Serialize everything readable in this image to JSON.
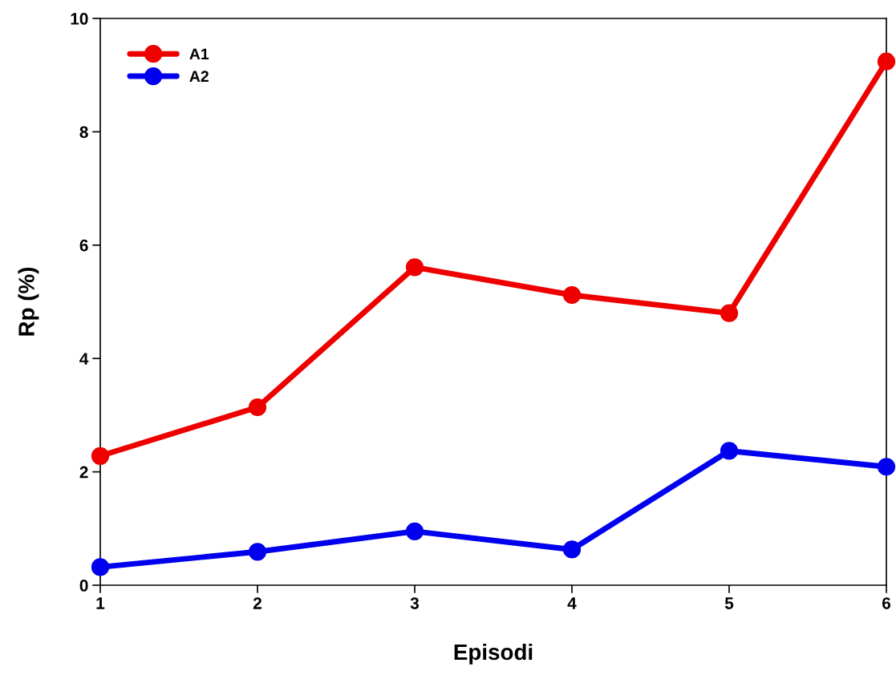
{
  "chart_data": {
    "type": "line",
    "xlabel": "Episodi",
    "ylabel": "Rp (%)",
    "x": [
      1,
      2,
      3,
      4,
      5,
      6
    ],
    "series": [
      {
        "name": "A1",
        "color": "#ee0000",
        "values": [
          2.28,
          3.14,
          5.61,
          5.12,
          4.8,
          9.24
        ]
      },
      {
        "name": "A2",
        "color": "#0000ee",
        "values": [
          0.32,
          0.59,
          0.95,
          0.63,
          2.37,
          2.09
        ]
      }
    ],
    "xlim": [
      1,
      6
    ],
    "xticks": [
      1,
      2,
      3,
      4,
      5,
      6
    ],
    "ylim": [
      0,
      10
    ],
    "yticks": [
      0,
      2,
      4,
      6,
      8,
      10
    ],
    "grid": false,
    "legend": "top left",
    "marker": "circle",
    "line_style": "solid"
  }
}
